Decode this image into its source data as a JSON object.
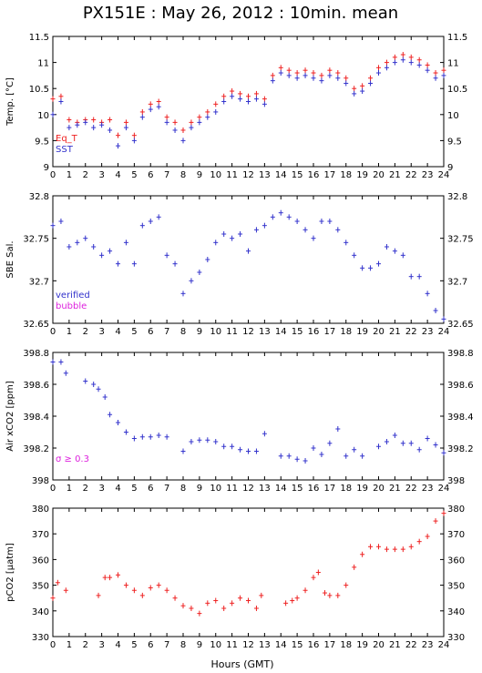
{
  "title": "PX151E : May 26, 2012 : 10min. mean",
  "x_axis": {
    "label": "Hours (GMT)",
    "ticks": [
      "0",
      "1",
      "2",
      "3",
      "4",
      "5",
      "6",
      "7",
      "8",
      "9",
      "10",
      "11",
      "12",
      "13",
      "14",
      "15",
      "16",
      "17",
      "18",
      "19",
      "20",
      "21",
      "22",
      "23",
      "24"
    ]
  },
  "colors": {
    "blue": "#3333cc",
    "red": "#ee2222",
    "magenta": "#dd22dd"
  },
  "chart_data": [
    {
      "type": "scatter",
      "ylabel": "Temp. [°C]",
      "xlim": [
        0,
        24
      ],
      "ylim": [
        9,
        11.5
      ],
      "yticks": [
        "9",
        "9.5",
        "10",
        "10.5",
        "11",
        "11.5"
      ],
      "ytick_values": [
        9,
        9.5,
        10,
        10.5,
        11,
        11.5
      ],
      "legend": [
        {
          "label": "Eq_T",
          "color": "#ee2222"
        },
        {
          "label": "SST",
          "color": "#3333cc"
        }
      ],
      "series": [
        {
          "name": "Eq_T",
          "color": "#ee2222",
          "x": [
            0,
            0.5,
            1,
            1.5,
            2,
            2.5,
            3,
            3.5,
            4,
            4.5,
            5,
            5.5,
            6,
            6.5,
            7,
            7.5,
            8,
            8.5,
            9,
            9.5,
            10,
            10.5,
            11,
            11.5,
            12,
            12.5,
            13,
            13.5,
            14,
            14.5,
            15,
            15.5,
            16,
            16.5,
            17,
            17.5,
            18,
            18.5,
            19,
            19.5,
            20,
            20.5,
            21,
            21.5,
            22,
            22.5,
            23,
            23.5,
            24
          ],
          "y": [
            10.3,
            10.35,
            9.9,
            9.85,
            9.9,
            9.9,
            9.85,
            9.9,
            9.6,
            9.85,
            9.6,
            10.05,
            10.2,
            10.25,
            9.95,
            9.85,
            9.7,
            9.85,
            9.95,
            10.05,
            10.2,
            10.35,
            10.45,
            10.4,
            10.35,
            10.4,
            10.3,
            10.75,
            10.9,
            10.85,
            10.8,
            10.85,
            10.8,
            10.75,
            10.85,
            10.8,
            10.7,
            10.5,
            10.55,
            10.7,
            10.9,
            11.0,
            11.1,
            11.15,
            11.1,
            11.05,
            10.95,
            10.8,
            10.85
          ]
        },
        {
          "name": "SST",
          "color": "#3333cc",
          "x": [
            0,
            0.5,
            1,
            1.5,
            2,
            2.5,
            3,
            3.5,
            4,
            4.5,
            5,
            5.5,
            6,
            6.5,
            7,
            7.5,
            8,
            8.5,
            9,
            9.5,
            10,
            10.5,
            11,
            11.5,
            12,
            12.5,
            13,
            13.5,
            14,
            14.5,
            15,
            15.5,
            16,
            16.5,
            17,
            17.5,
            18,
            18.5,
            19,
            19.5,
            20,
            20.5,
            21,
            21.5,
            22,
            22.5,
            23,
            23.5,
            24
          ],
          "y": [
            10.0,
            10.25,
            9.75,
            9.8,
            9.85,
            9.75,
            9.8,
            9.7,
            9.4,
            9.75,
            9.5,
            9.95,
            10.1,
            10.15,
            9.85,
            9.7,
            9.5,
            9.75,
            9.85,
            9.95,
            10.05,
            10.25,
            10.35,
            10.3,
            10.25,
            10.3,
            10.2,
            10.65,
            10.8,
            10.75,
            10.7,
            10.75,
            10.7,
            10.65,
            10.75,
            10.7,
            10.6,
            10.4,
            10.45,
            10.6,
            10.8,
            10.9,
            11.0,
            11.05,
            11.0,
            10.95,
            10.85,
            10.7,
            10.75
          ]
        }
      ]
    },
    {
      "type": "scatter",
      "ylabel": "SBE Sal.",
      "xlim": [
        0,
        24
      ],
      "ylim": [
        32.65,
        32.8
      ],
      "yticks": [
        "32.65",
        "32.7",
        "32.75",
        "32.8"
      ],
      "ytick_values": [
        32.65,
        32.7,
        32.75,
        32.8
      ],
      "legend": [
        {
          "label": "verified",
          "color": "#3333cc"
        },
        {
          "label": "bubble",
          "color": "#dd22dd"
        }
      ],
      "series": [
        {
          "name": "verified",
          "color": "#3333cc",
          "x": [
            0,
            0.5,
            1,
            1.5,
            2,
            2.5,
            3,
            3.5,
            4,
            4.5,
            5,
            5.5,
            6,
            6.5,
            7,
            7.5,
            8,
            8.5,
            9,
            9.5,
            10,
            10.5,
            11,
            11.5,
            12,
            12.5,
            13,
            13.5,
            14,
            14.5,
            15,
            15.5,
            16,
            16.5,
            17,
            17.5,
            18,
            18.5,
            19,
            19.5,
            20,
            20.5,
            21,
            21.5,
            22,
            22.5,
            23,
            23.5,
            24
          ],
          "y": [
            32.765,
            32.77,
            32.74,
            32.745,
            32.75,
            32.74,
            32.73,
            32.735,
            32.72,
            32.745,
            32.72,
            32.765,
            32.77,
            32.775,
            32.73,
            32.72,
            32.685,
            32.7,
            32.71,
            32.725,
            32.745,
            32.755,
            32.75,
            32.755,
            32.735,
            32.76,
            32.765,
            32.775,
            32.78,
            32.775,
            32.77,
            32.76,
            32.75,
            32.77,
            32.77,
            32.76,
            32.745,
            32.73,
            32.715,
            32.715,
            32.72,
            32.74,
            32.735,
            32.73,
            32.705,
            32.705,
            32.685,
            32.665,
            32.655
          ]
        }
      ]
    },
    {
      "type": "scatter",
      "ylabel": "Air xCO2 [ppm]",
      "xlim": [
        0,
        24
      ],
      "ylim": [
        398,
        398.8
      ],
      "yticks": [
        "398",
        "398.2",
        "398.4",
        "398.6",
        "398.8"
      ],
      "ytick_values": [
        398,
        398.2,
        398.4,
        398.6,
        398.8
      ],
      "annotation": "σ ≥ 0.3",
      "series": [
        {
          "color": "#3333cc",
          "x": [
            0,
            0.5,
            0.8,
            2,
            2.5,
            2.8,
            3.2,
            3.5,
            4,
            4.5,
            5,
            5.5,
            6,
            6.5,
            7,
            8,
            8.5,
            9,
            9.5,
            10,
            10.5,
            11,
            11.5,
            12,
            12.5,
            13,
            14,
            14.5,
            15,
            15.5,
            16,
            16.5,
            17,
            17.5,
            18,
            18.5,
            19,
            20,
            20.5,
            21,
            21.5,
            22,
            22.5,
            23,
            23.5,
            24
          ],
          "y": [
            398.74,
            398.74,
            398.67,
            398.62,
            398.6,
            398.57,
            398.52,
            398.41,
            398.36,
            398.3,
            398.26,
            398.27,
            398.27,
            398.28,
            398.27,
            398.18,
            398.24,
            398.25,
            398.25,
            398.24,
            398.21,
            398.21,
            398.19,
            398.18,
            398.18,
            398.29,
            398.15,
            398.15,
            398.13,
            398.12,
            398.2,
            398.16,
            398.23,
            398.32,
            398.15,
            398.19,
            398.15,
            398.21,
            398.24,
            398.28,
            398.23,
            398.23,
            398.19,
            398.26,
            398.22,
            398.17
          ]
        }
      ]
    },
    {
      "type": "scatter",
      "ylabel": "pCO2 [µatm]",
      "xlim": [
        0,
        24
      ],
      "ylim": [
        330,
        380
      ],
      "yticks": [
        "330",
        "340",
        "350",
        "360",
        "370",
        "380"
      ],
      "ytick_values": [
        330,
        340,
        350,
        360,
        370,
        380
      ],
      "series": [
        {
          "color": "#ee2222",
          "x": [
            0,
            0.3,
            0.8,
            2.8,
            3.2,
            3.5,
            4,
            4.5,
            5,
            5.5,
            6,
            6.5,
            7,
            7.5,
            8,
            8.5,
            9,
            9.5,
            10,
            10.5,
            11,
            11.5,
            12,
            12.5,
            12.8,
            14.3,
            14.7,
            15,
            15.5,
            16,
            16.3,
            16.7,
            17,
            17.5,
            18,
            18.5,
            19,
            19.5,
            20,
            20.5,
            21,
            21.5,
            22,
            22.5,
            23,
            23.5,
            24
          ],
          "y": [
            345,
            351,
            348,
            346,
            353,
            353,
            354,
            350,
            348,
            346,
            349,
            350,
            348,
            345,
            342,
            341,
            339,
            343,
            344,
            341,
            343,
            345,
            344,
            341,
            346,
            343,
            344,
            345,
            348,
            353,
            355,
            347,
            346,
            346,
            350,
            357,
            362,
            365,
            365,
            364,
            364,
            364,
            365,
            367,
            369,
            375,
            378
          ]
        }
      ]
    }
  ]
}
